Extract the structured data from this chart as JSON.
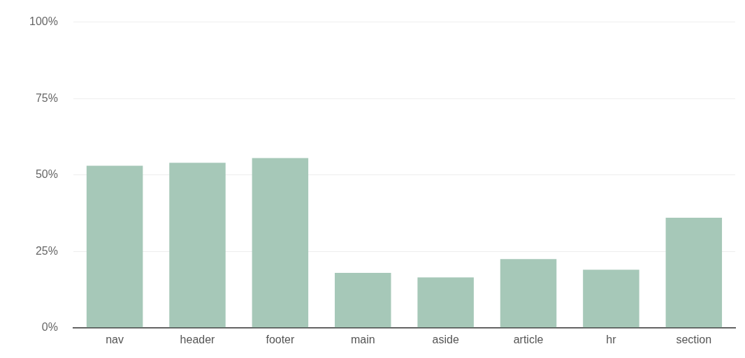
{
  "chart_data": {
    "type": "bar",
    "categories": [
      "nav",
      "header",
      "footer",
      "main",
      "aside",
      "article",
      "hr",
      "section"
    ],
    "values": [
      53,
      54,
      55.5,
      18,
      16.5,
      22.5,
      19,
      36
    ],
    "color": "#a6c8b8",
    "ylim": [
      0,
      100
    ],
    "yticks": [
      {
        "value": 0,
        "label": "0%"
      },
      {
        "value": 25,
        "label": "25%"
      },
      {
        "value": 50,
        "label": "50%"
      },
      {
        "value": 75,
        "label": "75%"
      },
      {
        "value": 100,
        "label": "100%"
      }
    ],
    "grid": "y"
  }
}
